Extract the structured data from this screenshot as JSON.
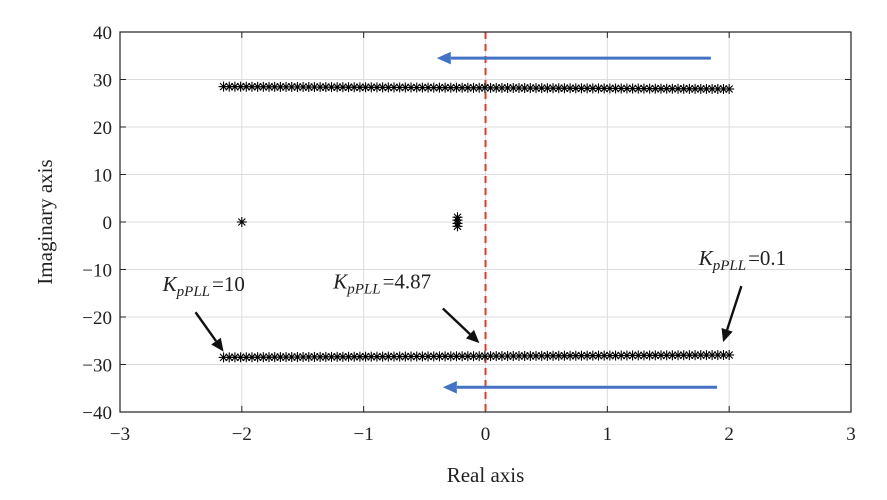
{
  "chart_data": {
    "type": "scatter",
    "xlabel": "Real axis",
    "ylabel": "Imaginary axis",
    "xlim": [
      -3,
      3
    ],
    "ylim": [
      -40,
      40
    ],
    "x_ticks": [
      -3,
      -2,
      -1,
      0,
      1,
      2,
      3
    ],
    "y_ticks": [
      -40,
      -30,
      -20,
      -10,
      0,
      10,
      20,
      30,
      40
    ],
    "x_tick_labels": [
      "−3",
      "−2",
      "−1",
      "0",
      "1",
      "2",
      "3"
    ],
    "y_tick_labels": [
      "−40",
      "−30",
      "−20",
      "−10",
      "0",
      "10",
      "20",
      "30",
      "40"
    ],
    "grid": true,
    "series": [
      {
        "marker": "asterisk",
        "color": "#000000",
        "x_range": [
          -2.15,
          2.0
        ],
        "y_start": 28.5,
        "y_end": 28.0,
        "count": 90
      },
      {
        "marker": "asterisk",
        "color": "#000000",
        "x_range": [
          -2.15,
          2.0
        ],
        "y_start": -28.5,
        "y_end": -28.0,
        "count": 90
      },
      {
        "marker": "asterisk",
        "color": "#000000",
        "points": [
          [
            -2.0,
            0.0
          ],
          [
            -0.23,
            1.0
          ],
          [
            -0.23,
            0.4
          ],
          [
            -0.23,
            -0.3
          ],
          [
            -0.23,
            -0.9
          ]
        ]
      }
    ],
    "reference_line": {
      "x": 0,
      "style": "dashed",
      "color": "#e03a2f"
    },
    "arrows": [
      {
        "from": [
          1.85,
          34.5
        ],
        "to": [
          -0.4,
          34.5
        ],
        "color": "#4472c4"
      },
      {
        "from": [
          1.9,
          -34.8
        ],
        "to": [
          -0.35,
          -34.8
        ],
        "color": "#4472c4"
      }
    ],
    "annotations": [
      {
        "k": "K",
        "sub": "pPLL",
        "text": "=10",
        "label_at": [
          -2.65,
          -14.5
        ],
        "arrow_from": [
          -2.38,
          -19.0
        ],
        "arrow_to": [
          -2.15,
          -27.3
        ]
      },
      {
        "k": "K",
        "sub": "pPLL",
        "text": "=4.87",
        "label_at": [
          -1.25,
          -14.0
        ],
        "arrow_from": [
          -0.35,
          -18.2
        ],
        "arrow_to": [
          -0.05,
          -25.5
        ]
      },
      {
        "k": "K",
        "sub": "pPLL",
        "text": "=0.1",
        "label_at": [
          1.75,
          -9.0
        ],
        "arrow_from": [
          2.1,
          -13.5
        ],
        "arrow_to": [
          1.95,
          -25.3
        ]
      }
    ]
  }
}
